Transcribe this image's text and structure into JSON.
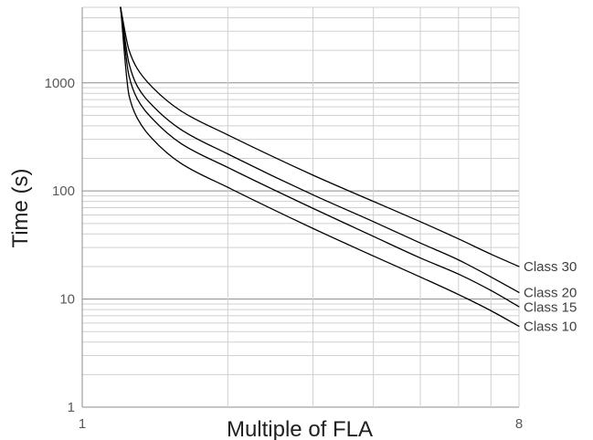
{
  "chart_data": {
    "type": "line",
    "title": "",
    "xlabel": "Multiple of FLA",
    "ylabel": "Time (s)",
    "x_scale": "log",
    "y_scale": "log",
    "xlim": [
      1,
      8
    ],
    "ylim": [
      1,
      5000
    ],
    "x_ticks": [
      1,
      8
    ],
    "x_tick_labels": [
      "1",
      "8"
    ],
    "y_ticks": [
      1,
      10,
      100,
      1000
    ],
    "y_tick_labels": [
      "1",
      "10",
      "100",
      "1000"
    ],
    "grid": true,
    "line_color": "#000000",
    "series": [
      {
        "name": "Class 30",
        "x": [
          1.2,
          1.25,
          1.3,
          1.4,
          1.6,
          2,
          3,
          4,
          5,
          6,
          7,
          8
        ],
        "values": [
          5000,
          2000,
          1350,
          900,
          550,
          330,
          140,
          80,
          52,
          36,
          26,
          20
        ]
      },
      {
        "name": "Class 20",
        "x": [
          1.2,
          1.25,
          1.3,
          1.4,
          1.6,
          2,
          3,
          4,
          5,
          6,
          7,
          8
        ],
        "values": [
          5000,
          1500,
          930,
          610,
          370,
          220,
          92,
          52,
          33,
          23,
          16,
          11.5
        ]
      },
      {
        "name": "Class 15",
        "x": [
          1.2,
          1.25,
          1.3,
          1.4,
          1.6,
          2,
          3,
          4,
          5,
          6,
          7,
          8
        ],
        "values": [
          5000,
          1150,
          710,
          460,
          275,
          165,
          69,
          38,
          24,
          17,
          12,
          8.5
        ]
      },
      {
        "name": "Class 10",
        "x": [
          1.2,
          1.25,
          1.3,
          1.4,
          1.6,
          2,
          3,
          4,
          5,
          6,
          7,
          8
        ],
        "values": [
          5000,
          760,
          470,
          300,
          180,
          108,
          45,
          25,
          16,
          11,
          7.8,
          5.6
        ]
      }
    ]
  }
}
